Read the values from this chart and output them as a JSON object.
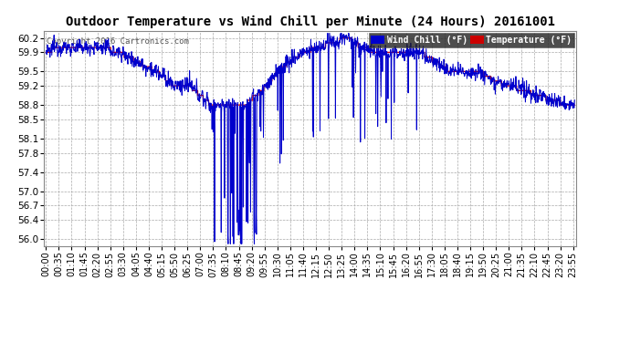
{
  "title": "Outdoor Temperature vs Wind Chill per Minute (24 Hours) 20161001",
  "copyright": "Copyright 2016 Cartronics.com",
  "ylabel_ticks": [
    56.0,
    56.4,
    56.7,
    57.0,
    57.4,
    57.8,
    58.1,
    58.5,
    58.8,
    59.2,
    59.5,
    59.9,
    60.2
  ],
  "ylim": [
    55.85,
    60.35
  ],
  "bg_color": "#ffffff",
  "grid_color": "#aaaaaa",
  "wind_chill_color": "#0000cc",
  "temp_color": "#cc0000",
  "legend_wind_bg": "#0000cc",
  "legend_temp_bg": "#cc0000",
  "title_fontsize": 10,
  "tick_fontsize": 7.5,
  "copyright_fontsize": 6.5
}
